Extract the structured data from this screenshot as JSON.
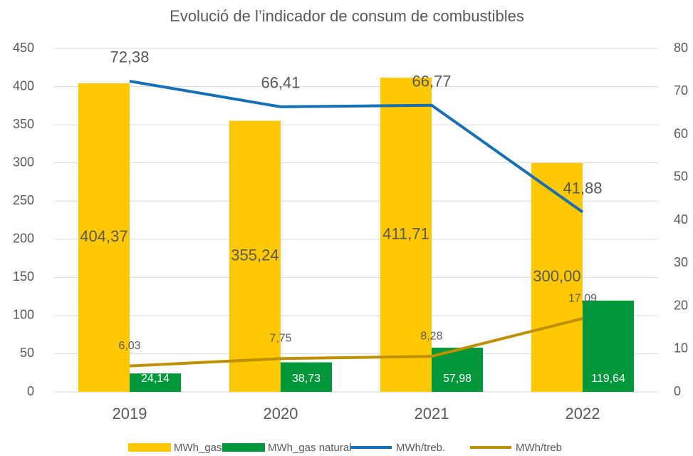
{
  "chart_data": {
    "type": "bar-line",
    "title": "Evolució de l’indicador de consum de combustibles",
    "categories": [
      "2019",
      "2020",
      "2021",
      "2022"
    ],
    "series": [
      {
        "name": "MWh_gasoil",
        "type": "bar",
        "color": "#ffc800",
        "values": [
          404.37,
          355.24,
          411.71,
          300.0
        ],
        "value_labels": [
          "404,37",
          "355,24",
          "411,71",
          "300,00"
        ]
      },
      {
        "name": "MWh_gas natural",
        "type": "bar",
        "color": "#00983a",
        "values": [
          24.14,
          38.73,
          57.98,
          119.64
        ],
        "value_labels": [
          "24,14",
          "38,73",
          "57,98",
          "119,64"
        ]
      },
      {
        "name": "MWh/treb.",
        "type": "line",
        "axis": "y2",
        "color": "#176fb5",
        "values": [
          72.38,
          66.41,
          66.77,
          41.88
        ],
        "value_labels": [
          "72,38",
          "66,41",
          "66,77",
          "41,88"
        ]
      },
      {
        "name": "MWh/treb",
        "type": "line",
        "axis": "y2",
        "color": "#bf9000",
        "values": [
          6.03,
          7.75,
          8.28,
          17.09
        ],
        "value_labels": [
          "6,03",
          "7,75",
          "8,28",
          "17,09"
        ]
      }
    ],
    "ylim": [
      0,
      450
    ],
    "yticks": [
      0,
      50,
      100,
      150,
      200,
      250,
      300,
      350,
      400,
      450
    ],
    "y2lim": [
      0,
      80
    ],
    "y2ticks": [
      0,
      10,
      20,
      30,
      40,
      50,
      60,
      70,
      80
    ],
    "grid": true,
    "legend": "bottom"
  }
}
